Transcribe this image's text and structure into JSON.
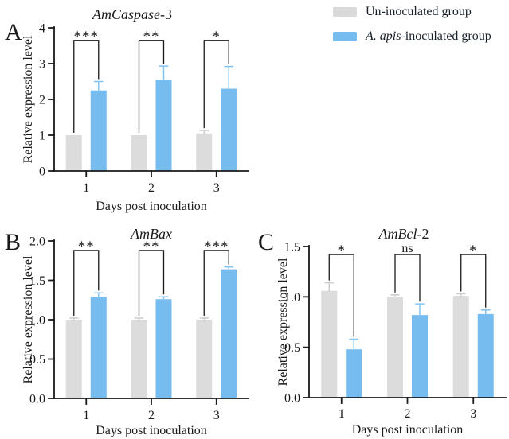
{
  "figure": {
    "panels": [
      {
        "letter": "A"
      },
      {
        "letter": "B"
      },
      {
        "letter": "C"
      }
    ]
  },
  "legend": {
    "items": [
      {
        "name": "uninoculated",
        "label": "Un-inoculated group",
        "color": "#D9D9D9"
      },
      {
        "name": "inoculated",
        "label_italic": "A. apis",
        "label_rest": "-inoculated group",
        "color": "#76BCEE"
      }
    ]
  },
  "colors": {
    "uninoculated_bar": "#DCDCDC",
    "uninoculated_error": "#CDCDCD",
    "inoculated_bar": "#76BCEE",
    "inoculated_error": "#82C3F0",
    "axis": "#1a1a1a"
  },
  "chart_data": [
    {
      "type": "bar",
      "panel": "A",
      "title_italic": "AmCaspase",
      "title_rest": "-3",
      "xlabel": "Days post inoculation",
      "ylabel": "Relative expression level",
      "categories": [
        "1",
        "2",
        "3"
      ],
      "ylim": [
        0,
        4
      ],
      "ytick_values": [
        0,
        1,
        2,
        3,
        4
      ],
      "ytick_labels": [
        "0",
        "1",
        "2",
        "3",
        "4"
      ],
      "legend_position": "top-right-of-figure",
      "grid": false,
      "series": [
        {
          "name": "Un-inoculated group",
          "values": [
            1.0,
            1.0,
            1.05
          ],
          "errors": [
            0,
            0,
            0.08
          ]
        },
        {
          "name": "A. apis-inoculated group",
          "values": [
            2.25,
            2.55,
            2.3
          ],
          "errors": [
            0.25,
            0.38,
            0.62
          ]
        }
      ],
      "significance": {
        "labels": [
          "***",
          "**",
          "*"
        ],
        "bracket_top": 3.65
      }
    },
    {
      "type": "bar",
      "panel": "B",
      "title_italic": "AmBax",
      "title_rest": "",
      "xlabel": "Days post inoculation",
      "ylabel": "Relative expression level",
      "categories": [
        "1",
        "2",
        "3"
      ],
      "ylim": [
        0,
        2.0
      ],
      "ytick_values": [
        0,
        0.5,
        1.0,
        1.5,
        2.0
      ],
      "ytick_labels": [
        "0.0",
        "0.5",
        "1.0",
        "1.5",
        "2.0"
      ],
      "grid": false,
      "series": [
        {
          "name": "Un-inoculated group",
          "values": [
            1.0,
            1.0,
            1.0
          ],
          "errors": [
            0.02,
            0.02,
            0.02
          ]
        },
        {
          "name": "A. apis-inoculated group",
          "values": [
            1.29,
            1.26,
            1.64
          ],
          "errors": [
            0.05,
            0.03,
            0.03
          ]
        }
      ],
      "significance": {
        "labels": [
          "**",
          "**",
          "***"
        ],
        "bracket_top": 1.88
      }
    },
    {
      "type": "bar",
      "panel": "C",
      "title_italic": "AmBcl",
      "title_rest": "-2",
      "xlabel": "Days post inoculation",
      "ylabel": "Relative expression level",
      "categories": [
        "1",
        "2",
        "3"
      ],
      "ylim": [
        0,
        1.5
      ],
      "ytick_values": [
        0,
        0.5,
        1.0,
        1.5
      ],
      "ytick_labels": [
        "0.0",
        "0.5",
        "1.0",
        "1.5"
      ],
      "grid": false,
      "series": [
        {
          "name": "Un-inoculated group",
          "values": [
            1.06,
            1.0,
            1.01
          ],
          "errors": [
            0.08,
            0.02,
            0.02
          ]
        },
        {
          "name": "A. apis-inoculated group",
          "values": [
            0.48,
            0.82,
            0.83
          ],
          "errors": [
            0.1,
            0.11,
            0.04
          ]
        }
      ],
      "significance": {
        "labels": [
          "*",
          "ns",
          "*"
        ],
        "bracket_top": 1.42
      }
    }
  ]
}
